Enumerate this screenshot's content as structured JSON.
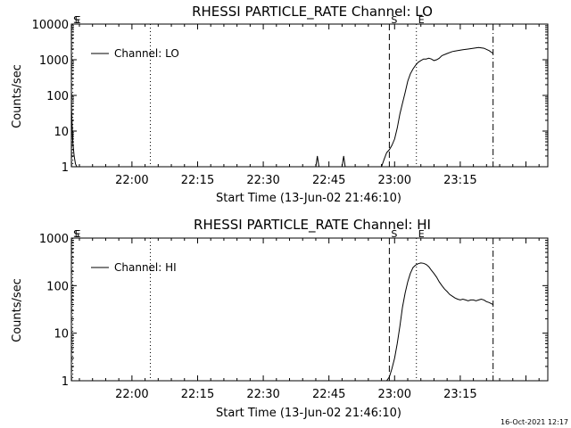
{
  "colors": {
    "background": "#ffffff",
    "foreground": "#000000"
  },
  "footer": {
    "timestamp": "16-Oct-2021 12:17"
  },
  "chart_data": [
    {
      "type": "line",
      "title": "RHESSI PARTICLE_RATE Channel: LO",
      "xlabel": "Start Time (13-Jun-02 21:46:10)",
      "ylabel": "Counts/sec",
      "yscale": "log",
      "xlim": [
        21.7694,
        23.5833
      ],
      "ylim": [
        1,
        10000
      ],
      "xticks": [
        22.0,
        22.25,
        22.5,
        22.75,
        23.0,
        23.25
      ],
      "xtick_labels": [
        "22:00",
        "22:15",
        "22:30",
        "22:45",
        "23:00",
        "23:15"
      ],
      "yticks": [
        1,
        10,
        100,
        1000,
        10000
      ],
      "ytick_labels": [
        "1",
        "10",
        "100",
        "1000",
        "10000"
      ],
      "grid": false,
      "legend": {
        "position": "top-left",
        "entries": [
          "Channel: LO"
        ]
      },
      "markers": [
        {
          "x": 21.77,
          "label": "S",
          "style": "dashed"
        },
        {
          "x": 21.775,
          "label": "E",
          "style": "dotted"
        },
        {
          "x": 22.07,
          "label": "",
          "style": "dotted"
        },
        {
          "x": 22.98,
          "label": "S",
          "style": "dashed"
        },
        {
          "x": 23.083,
          "label": "E",
          "style": "dotted"
        },
        {
          "x": 23.375,
          "label": "",
          "style": "dashdot"
        }
      ],
      "series": [
        {
          "name": "Channel: LO",
          "points": [
            [
              21.77,
              40
            ],
            [
              21.775,
              5
            ],
            [
              21.78,
              2
            ],
            [
              21.785,
              1.2
            ],
            [
              21.79,
              1
            ],
            [
              22.7,
              1
            ],
            [
              22.706,
              2
            ],
            [
              22.712,
              1
            ],
            [
              22.8,
              1
            ],
            [
              22.806,
              2
            ],
            [
              22.812,
              1
            ],
            [
              22.95,
              1
            ],
            [
              22.96,
              1.6
            ],
            [
              22.97,
              2.5
            ],
            [
              22.98,
              3
            ],
            [
              22.99,
              4
            ],
            [
              23.0,
              6
            ],
            [
              23.01,
              12
            ],
            [
              23.02,
              30
            ],
            [
              23.03,
              60
            ],
            [
              23.04,
              120
            ],
            [
              23.05,
              250
            ],
            [
              23.06,
              400
            ],
            [
              23.07,
              550
            ],
            [
              23.08,
              700
            ],
            [
              23.09,
              850
            ],
            [
              23.1,
              950
            ],
            [
              23.11,
              1050
            ],
            [
              23.12,
              1050
            ],
            [
              23.13,
              1100
            ],
            [
              23.14,
              1050
            ],
            [
              23.15,
              950
            ],
            [
              23.16,
              1000
            ],
            [
              23.17,
              1100
            ],
            [
              23.18,
              1300
            ],
            [
              23.2,
              1500
            ],
            [
              23.22,
              1700
            ],
            [
              23.24,
              1800
            ],
            [
              23.26,
              1900
            ],
            [
              23.28,
              2000
            ],
            [
              23.3,
              2100
            ],
            [
              23.32,
              2200
            ],
            [
              23.34,
              2100
            ],
            [
              23.36,
              1800
            ],
            [
              23.375,
              1500
            ]
          ]
        }
      ]
    },
    {
      "type": "line",
      "title": "RHESSI PARTICLE_RATE Channel: HI",
      "xlabel": "Start Time (13-Jun-02 21:46:10)",
      "ylabel": "Counts/sec",
      "yscale": "log",
      "xlim": [
        21.7694,
        23.5833
      ],
      "ylim": [
        1,
        1000
      ],
      "xticks": [
        22.0,
        22.25,
        22.5,
        22.75,
        23.0,
        23.25
      ],
      "xtick_labels": [
        "22:00",
        "22:15",
        "22:30",
        "22:45",
        "23:00",
        "23:15"
      ],
      "yticks": [
        1,
        10,
        100,
        1000
      ],
      "ytick_labels": [
        "1",
        "10",
        "100",
        "1000"
      ],
      "grid": false,
      "legend": {
        "position": "top-left",
        "entries": [
          "Channel: HI"
        ]
      },
      "markers": [
        {
          "x": 21.77,
          "label": "S",
          "style": "dashed"
        },
        {
          "x": 21.775,
          "label": "E",
          "style": "dotted"
        },
        {
          "x": 22.07,
          "label": "",
          "style": "dotted"
        },
        {
          "x": 22.98,
          "label": "S",
          "style": "dashed"
        },
        {
          "x": 23.083,
          "label": "E",
          "style": "dotted"
        },
        {
          "x": 23.375,
          "label": "",
          "style": "dashdot"
        }
      ],
      "series": [
        {
          "name": "Channel: HI",
          "points": [
            [
              22.97,
              1
            ],
            [
              22.98,
              1.2
            ],
            [
              22.99,
              1.8
            ],
            [
              23.0,
              3
            ],
            [
              23.01,
              6
            ],
            [
              23.02,
              14
            ],
            [
              23.03,
              35
            ],
            [
              23.04,
              70
            ],
            [
              23.05,
              120
            ],
            [
              23.06,
              180
            ],
            [
              23.07,
              240
            ],
            [
              23.08,
              270
            ],
            [
              23.09,
              290
            ],
            [
              23.1,
              300
            ],
            [
              23.11,
              295
            ],
            [
              23.12,
              280
            ],
            [
              23.13,
              250
            ],
            [
              23.14,
              210
            ],
            [
              23.15,
              180
            ],
            [
              23.16,
              150
            ],
            [
              23.17,
              120
            ],
            [
              23.18,
              100
            ],
            [
              23.19,
              85
            ],
            [
              23.2,
              75
            ],
            [
              23.21,
              65
            ],
            [
              23.22,
              60
            ],
            [
              23.23,
              55
            ],
            [
              23.24,
              52
            ],
            [
              23.25,
              50
            ],
            [
              23.26,
              52
            ],
            [
              23.27,
              50
            ],
            [
              23.28,
              48
            ],
            [
              23.29,
              50
            ],
            [
              23.3,
              50
            ],
            [
              23.31,
              48
            ],
            [
              23.32,
              50
            ],
            [
              23.33,
              52
            ],
            [
              23.34,
              50
            ],
            [
              23.35,
              46
            ],
            [
              23.36,
              44
            ],
            [
              23.375,
              40
            ]
          ]
        }
      ]
    }
  ]
}
